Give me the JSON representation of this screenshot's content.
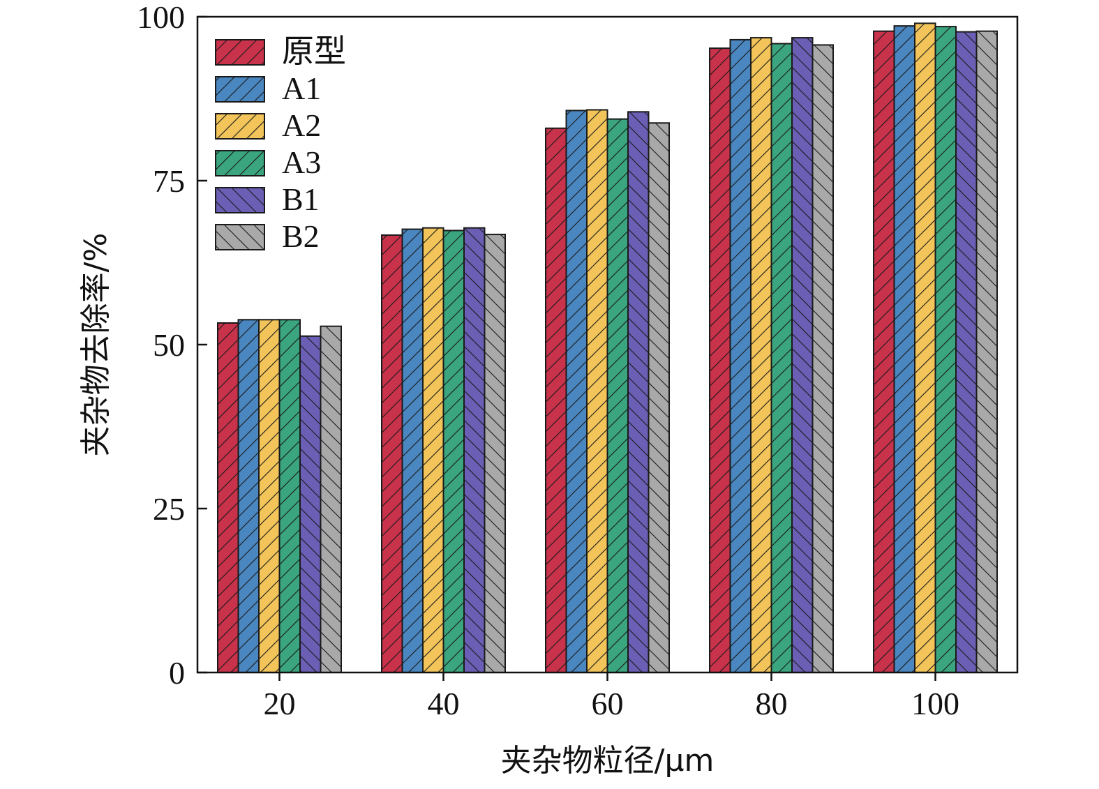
{
  "chart_data": {
    "type": "bar",
    "title": "",
    "xlabel": "夹杂物粒径/μm",
    "ylabel": "夹杂物去除率/%",
    "categories": [
      "20",
      "40",
      "60",
      "80",
      "100"
    ],
    "ylim": [
      0,
      100
    ],
    "yticks": [
      0,
      25,
      50,
      75,
      100
    ],
    "grid": false,
    "legend_position": "top-left",
    "series": [
      {
        "name": "原型",
        "color": "#c8324a",
        "values": [
          53.3,
          66.7,
          83.0,
          95.2,
          97.8
        ]
      },
      {
        "name": "A1",
        "color": "#4a86bf",
        "values": [
          53.8,
          67.6,
          85.7,
          96.5,
          98.6
        ]
      },
      {
        "name": "A2",
        "color": "#f2c45a",
        "values": [
          53.8,
          67.8,
          85.8,
          96.8,
          99.0
        ]
      },
      {
        "name": "A3",
        "color": "#3aa57e",
        "values": [
          53.8,
          67.4,
          84.4,
          95.9,
          98.5
        ]
      },
      {
        "name": "B1",
        "color": "#6a5fb5",
        "values": [
          51.3,
          67.8,
          85.5,
          96.8,
          97.7
        ]
      },
      {
        "name": "B2",
        "color": "#a9a9a9",
        "values": [
          52.8,
          66.8,
          83.8,
          95.7,
          97.8
        ]
      }
    ]
  }
}
